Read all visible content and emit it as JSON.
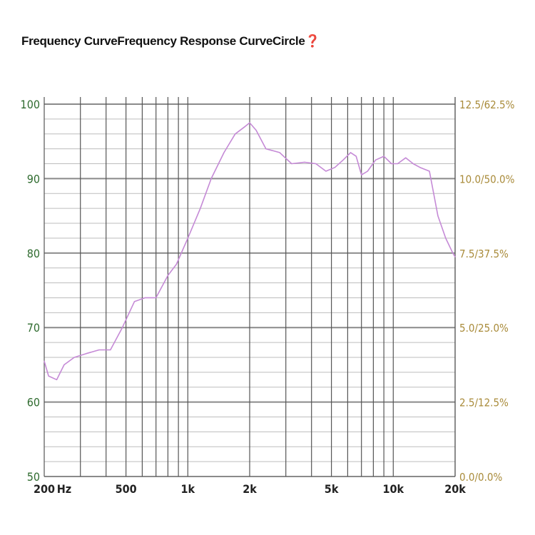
{
  "title": "Frequency CurveFrequency Response CurveCircle❓",
  "chart_data": {
    "type": "line",
    "title": "Frequency CurveFrequency Response CurveCircle❓",
    "xscale": "log",
    "xlim": [
      200,
      20000
    ],
    "ylim": [
      50,
      100
    ],
    "grid": true,
    "x_tick_labels": [
      {
        "value": 200,
        "label": "200"
      },
      {
        "value": 500,
        "label": "500"
      },
      {
        "value": 1000,
        "label": "1k"
      },
      {
        "value": 2000,
        "label": "2k"
      },
      {
        "value": 5000,
        "label": "5k"
      },
      {
        "value": 10000,
        "label": "10k"
      },
      {
        "value": 20000,
        "label": "20k"
      }
    ],
    "x_unit_label": "Hz",
    "y_left_ticks": [
      {
        "value": 50,
        "label": "50"
      },
      {
        "value": 60,
        "label": "60"
      },
      {
        "value": 70,
        "label": "70"
      },
      {
        "value": 80,
        "label": "80"
      },
      {
        "value": 90,
        "label": "90"
      },
      {
        "value": 100,
        "label": "100"
      }
    ],
    "y_right_ticks": [
      {
        "value": 50,
        "label": "0.0/0.0%"
      },
      {
        "value": 60,
        "label": "2.5/12.5%"
      },
      {
        "value": 70,
        "label": "5.0/25.0%"
      },
      {
        "value": 80,
        "label": "7.5/37.5%"
      },
      {
        "value": 90,
        "label": "10.0/50.0%"
      },
      {
        "value": 100,
        "label": "12.5/62.5%"
      }
    ],
    "series": [
      {
        "color": "#c58ad6",
        "x": [
          200,
          210,
          230,
          250,
          280,
          320,
          370,
          420,
          480,
          550,
          620,
          700,
          800,
          880,
          1000,
          1150,
          1300,
          1500,
          1700,
          1900,
          2000,
          2150,
          2400,
          2800,
          3200,
          3700,
          4200,
          4700,
          5200,
          5700,
          6200,
          6600,
          7000,
          7500,
          8200,
          9000,
          9800,
          10500,
          11500,
          12500,
          13500,
          15000,
          16500,
          18000,
          19500,
          20000
        ],
        "y": [
          65.5,
          63.5,
          63,
          65,
          66,
          66.5,
          67,
          67,
          70,
          73.5,
          74,
          74,
          77,
          78.5,
          82,
          86,
          90,
          93.5,
          96,
          97,
          97.5,
          96.5,
          94,
          93.5,
          92,
          92.2,
          92,
          91,
          91.5,
          92.5,
          93.5,
          93,
          90.5,
          91,
          92.5,
          93,
          92,
          92,
          92.8,
          92,
          91.5,
          91,
          85,
          82,
          80,
          79.5
        ]
      }
    ]
  },
  "colors": {
    "left_axis": "#2f6b2f",
    "right_axis": "#a98b3a",
    "x_axis": "#222222",
    "line": "#c58ad6",
    "major_grid": "#8a8a8a",
    "minor_grid": "#bdbdbd",
    "vertical_grid": "#555555"
  }
}
